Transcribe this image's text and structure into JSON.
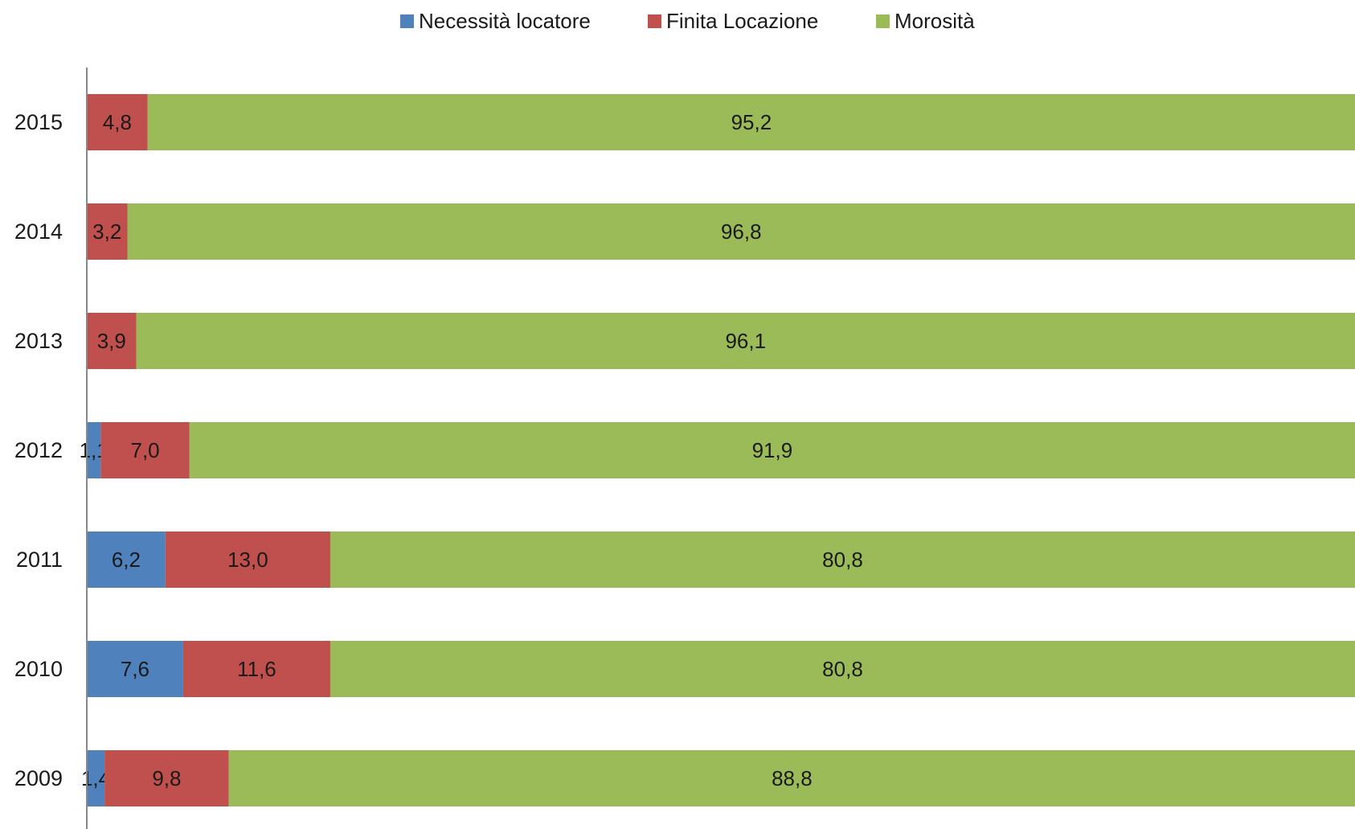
{
  "chart_data": {
    "type": "bar",
    "orientation": "horizontal",
    "stacked": "percent",
    "title": "",
    "xlabel": "",
    "ylabel": "",
    "legend_position": "top",
    "grid": false,
    "categories": [
      "2015",
      "2014",
      "2013",
      "2012",
      "2011",
      "2010",
      "2009"
    ],
    "series": [
      {
        "name": "Necessità locatore",
        "color": "#4f81bd",
        "values": [
          0,
          0,
          0,
          1.1,
          6.2,
          7.6,
          1.4
        ],
        "labels": [
          "",
          "",
          "",
          "1,1",
          "6,2",
          "7,6",
          "1,4"
        ]
      },
      {
        "name": "Finita Locazione",
        "color": "#c0504d",
        "values": [
          4.8,
          3.2,
          3.9,
          7.0,
          13.0,
          11.6,
          9.8
        ],
        "labels": [
          "4,8",
          "3,2",
          "3,9",
          "7,0",
          "13,0",
          "11,6",
          "9,8"
        ]
      },
      {
        "name": "Morosità",
        "color": "#9bbb59",
        "values": [
          95.2,
          96.8,
          96.1,
          91.9,
          80.8,
          80.8,
          88.8
        ],
        "labels": [
          "95,2",
          "96,8",
          "96,1",
          "91,9",
          "80,8",
          "80,8",
          "88,8"
        ]
      }
    ]
  }
}
